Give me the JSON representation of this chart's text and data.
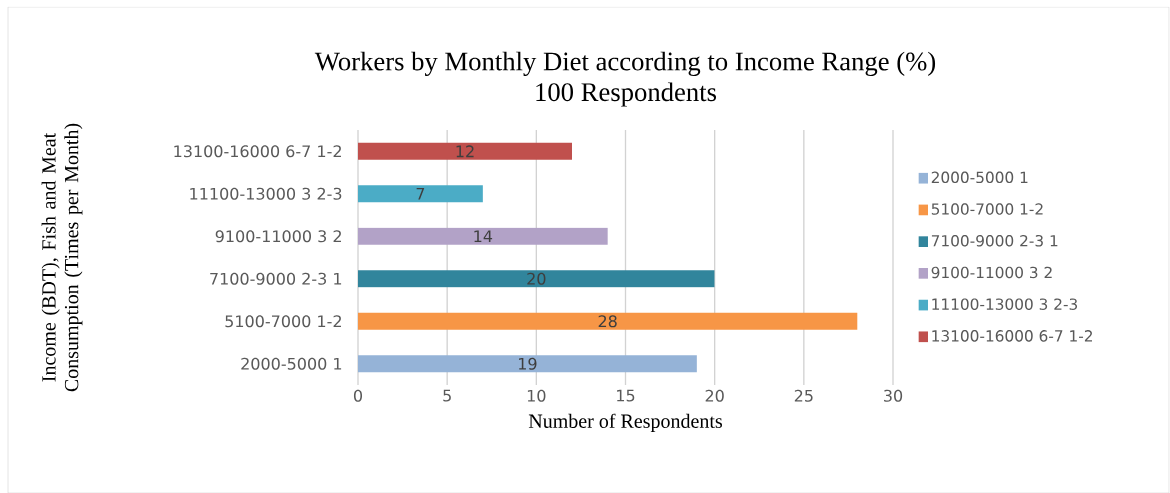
{
  "chart_data": {
    "type": "bar",
    "orientation": "horizontal",
    "title": "Workers by Monthly Diet according to Income Range (%)",
    "subtitle": "100 Respondents",
    "ylabel": "Income (BDT), Fish and Meat Consumption (Times per Month)",
    "xlabel": "Number of Respondents",
    "categories": [
      "13100-16000 6-7 1-2",
      "11100-13000 3 2-3",
      "9100-11000 3 2",
      "7100-9000 2-3 1",
      "5100-7000 1-2",
      "2000-5000 1"
    ],
    "series": [
      {
        "name": "2000-5000 1",
        "color": "#95b3d7",
        "values": [
          null,
          null,
          null,
          null,
          null,
          19
        ]
      },
      {
        "name": "5100-7000 1-2",
        "color": "#f79646",
        "values": [
          null,
          null,
          null,
          null,
          28,
          null
        ]
      },
      {
        "name": "7100-9000 2-3 1",
        "color": "#31859c",
        "values": [
          null,
          null,
          null,
          20,
          null,
          null
        ]
      },
      {
        "name": "9100-11000 3 2",
        "color": "#b2a2c7",
        "values": [
          null,
          null,
          14,
          null,
          null,
          null
        ]
      },
      {
        "name": "11100-13000 3 2-3",
        "color": "#4bacc6",
        "values": [
          null,
          7,
          null,
          null,
          null,
          null
        ]
      },
      {
        "name": "13100-16000 6-7 1-2",
        "color": "#c0504d",
        "values": [
          12,
          null,
          null,
          null,
          null,
          null
        ]
      }
    ],
    "xlim": [
      0,
      30
    ],
    "xticks": [
      0,
      5,
      10,
      15,
      20,
      25,
      30
    ],
    "grid": "x",
    "legend": "right",
    "data_labels": true
  }
}
